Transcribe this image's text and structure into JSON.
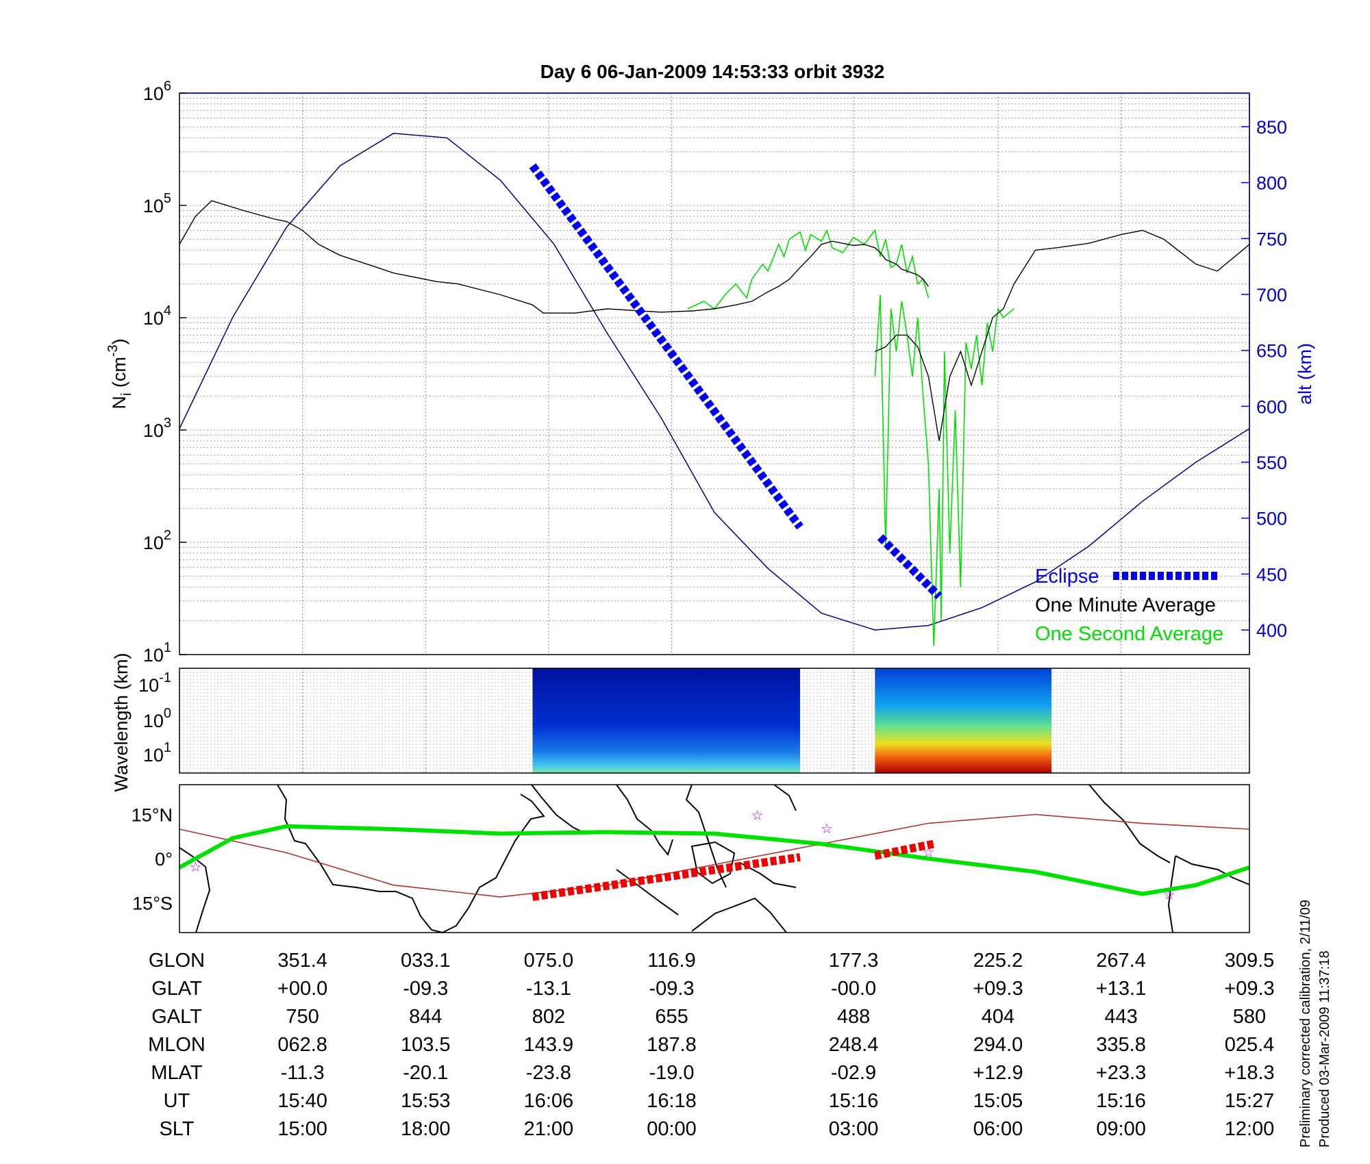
{
  "chart_data": {
    "type": "line",
    "title": "Day 6  06-Jan-2009 14:53:33   orbit 3932",
    "panels": [
      {
        "name": "density",
        "y_left": {
          "label": "Ni (cm-3)",
          "scale": "log",
          "ylim": [
            10,
            1000000
          ],
          "ticks": [
            {
              "base": "10",
              "exp": "1"
            },
            {
              "base": "10",
              "exp": "2"
            },
            {
              "base": "10",
              "exp": "3"
            },
            {
              "base": "10",
              "exp": "4"
            },
            {
              "base": "10",
              "exp": "5"
            },
            {
              "base": "10",
              "exp": "6"
            }
          ]
        },
        "y_right": {
          "label": "alt (km)",
          "ylim": [
            378,
            880
          ],
          "ticks": [
            "400",
            "450",
            "500",
            "550",
            "600",
            "650",
            "700",
            "750",
            "800",
            "850"
          ]
        },
        "legend": {
          "position": "bottom-right",
          "entries": [
            "Eclipse",
            "One Minute Average",
            "One Second Average"
          ]
        },
        "series": [
          {
            "name": "One Minute Average",
            "color": "#000000",
            "segments": [
              {
                "x": [
                  0.0,
                  0.015,
                  0.03,
                  0.06,
                  0.09,
                  0.1,
                  0.115,
                  0.13,
                  0.15,
                  0.18,
                  0.2,
                  0.24,
                  0.26,
                  0.3,
                  0.33,
                  0.34,
                  0.37,
                  0.4,
                  0.43,
                  0.45,
                  0.48,
                  0.5,
                  0.52,
                  0.535,
                  0.55,
                  0.56,
                  0.57,
                  0.58,
                  0.59,
                  0.6,
                  0.61,
                  0.62,
                  0.63,
                  0.64,
                  0.65,
                  0.655,
                  0.66,
                  0.67,
                  0.675,
                  0.68,
                  0.685,
                  0.69,
                  0.695,
                  0.7
                ],
                "y": [
                  45000,
                  80000,
                  110000,
                  90000,
                  75000,
                  72000,
                  60000,
                  45000,
                  36000,
                  29000,
                  25000,
                  21000,
                  20000,
                  16000,
                  13000,
                  11000,
                  11000,
                  12000,
                  11500,
                  11200,
                  11500,
                  12000,
                  13000,
                  14000,
                  17000,
                  19000,
                  22000,
                  28000,
                  35000,
                  45000,
                  48000,
                  46000,
                  44000,
                  45000,
                  42000,
                  38000,
                  33000,
                  30000,
                  27000,
                  26000,
                  25000,
                  24000,
                  22000,
                  19000
                ]
              },
              {
                "x": [
                  0.65,
                  0.66,
                  0.67,
                  0.68,
                  0.69,
                  0.7,
                  0.71,
                  0.72,
                  0.73,
                  0.74,
                  0.75,
                  0.76,
                  0.77,
                  0.78,
                  0.8,
                  0.82,
                  0.85,
                  0.88,
                  0.9,
                  0.92,
                  0.95,
                  0.97,
                  1.0
                ],
                "y": [
                  5000,
                  5500,
                  7000,
                  7000,
                  5500,
                  3000,
                  800,
                  3000,
                  5000,
                  2500,
                  5000,
                  10000,
                  12000,
                  20000,
                  40000,
                  42000,
                  46000,
                  55000,
                  60000,
                  50000,
                  30000,
                  26000,
                  45000
                ]
              }
            ]
          },
          {
            "name": "One Second Average",
            "color": "#00e000",
            "segments": [
              {
                "x": [
                  0.475,
                  0.49,
                  0.5,
                  0.51,
                  0.52,
                  0.53,
                  0.535,
                  0.545,
                  0.55,
                  0.56,
                  0.565,
                  0.57,
                  0.58,
                  0.585,
                  0.59,
                  0.6,
                  0.605,
                  0.61,
                  0.62,
                  0.63,
                  0.64,
                  0.65,
                  0.655,
                  0.66,
                  0.665,
                  0.67,
                  0.675,
                  0.68,
                  0.685,
                  0.69,
                  0.695,
                  0.7
                ],
                "y": [
                  12000,
                  14000,
                  12000,
                  16000,
                  20000,
                  15000,
                  22000,
                  30000,
                  26000,
                  45000,
                  35000,
                  50000,
                  58000,
                  40000,
                  55000,
                  48000,
                  60000,
                  42000,
                  38000,
                  52000,
                  45000,
                  60000,
                  35000,
                  50000,
                  28000,
                  30000,
                  45000,
                  25000,
                  35000,
                  20000,
                  22000,
                  15000
                ]
              },
              {
                "x": [
                  0.65,
                  0.655,
                  0.66,
                  0.665,
                  0.67,
                  0.675,
                  0.68,
                  0.685,
                  0.69,
                  0.695,
                  0.7,
                  0.705,
                  0.71,
                  0.712,
                  0.715,
                  0.72,
                  0.725,
                  0.73,
                  0.735,
                  0.74,
                  0.745,
                  0.75,
                  0.755,
                  0.76,
                  0.765,
                  0.77,
                  0.775,
                  0.78
                ],
                "y": [
                  3000,
                  16000,
                  90,
                  12000,
                  5000,
                  14000,
                  7000,
                  3000,
                  10000,
                  2000,
                  500,
                  12,
                  300,
                  20,
                  5000,
                  80,
                  1500,
                  40,
                  6000,
                  3500,
                  7000,
                  2500,
                  9000,
                  5000,
                  12000,
                  10000,
                  11000,
                  12000
                ]
              }
            ]
          },
          {
            "name": "Altitude",
            "color": "#000080",
            "x": [
              0.0,
              0.05,
              0.1,
              0.15,
              0.2,
              0.25,
              0.3,
              0.35,
              0.4,
              0.45,
              0.5,
              0.55,
              0.6,
              0.65,
              0.7,
              0.75,
              0.8,
              0.85,
              0.9,
              0.95,
              1.0
            ],
            "y": [
              580,
              680,
              760,
              815,
              844,
              840,
              802,
              745,
              665,
              590,
              505,
              455,
              415,
              400,
              404,
              420,
              443,
              475,
              515,
              550,
              580
            ]
          },
          {
            "name": "Eclipse",
            "color": "#0000ee",
            "segments": [
              {
                "x": [
                  0.33,
                  0.58
                ],
                "y": [
                  815,
                  492
                ]
              },
              {
                "x": [
                  0.655,
                  0.71
                ],
                "y": [
                  483,
                  430
                ]
              }
            ]
          }
        ]
      },
      {
        "name": "spectrogram",
        "y_left": {
          "label": "Wavelength (km)",
          "ticks": [
            {
              "base": "10",
              "exp": "-1"
            },
            {
              "base": "10",
              "exp": "0"
            },
            {
              "base": "10",
              "exp": "1"
            }
          ]
        },
        "blocks": [
          {
            "x": [
              0.33,
              0.58
            ],
            "intensity": "low"
          },
          {
            "x": [
              0.65,
              0.815
            ],
            "intensity": "high"
          }
        ]
      },
      {
        "name": "map",
        "y_left": {
          "ticks": [
            "15°N",
            "0°",
            "15°S"
          ]
        },
        "series": [
          {
            "name": "magnetic equator",
            "color": "#aa3333",
            "x": [
              0.0,
              0.1,
              0.2,
              0.3,
              0.4,
              0.5,
              0.6,
              0.7,
              0.8,
              0.9,
              1.0
            ],
            "lat": [
              10,
              2,
              -9,
              -13,
              -9,
              -2,
              5,
              12,
              15,
              12,
              10
            ]
          },
          {
            "name": "satellite track",
            "color": "#00e000",
            "x": [
              0.0,
              0.05,
              0.1,
              0.2,
              0.3,
              0.4,
              0.5,
              0.6,
              0.7,
              0.8,
              0.9,
              0.95,
              1.0
            ],
            "lat": [
              -3,
              7,
              11,
              10,
              8.5,
              9,
              8.5,
              5,
              0,
              -4.5,
              -12,
              -9,
              -3
            ]
          },
          {
            "name": "eclipse track",
            "color": "#ee0000",
            "segments": [
              {
                "x": [
                  0.33,
                  0.58
                ],
                "lat": [
                  -13,
                  0.5
                ]
              },
              {
                "x": [
                  0.65,
                  0.705
                ],
                "lat": [
                  1,
                  5
                ]
              }
            ]
          }
        ],
        "stars": [
          {
            "x": 0.015,
            "lat": -2.5
          },
          {
            "x": 0.54,
            "lat": 15
          },
          {
            "x": 0.605,
            "lat": 10.5
          },
          {
            "x": 0.7,
            "lat": 2.5
          },
          {
            "x": 0.925,
            "lat": -12
          }
        ]
      }
    ],
    "xticks": [
      0.115,
      0.23,
      0.345,
      0.46,
      0.63,
      0.765,
      0.88,
      1.0
    ]
  },
  "table": {
    "rows": [
      {
        "label": "GLON",
        "values": [
          "351.4",
          "033.1",
          "075.0",
          "116.9",
          "177.3",
          "225.2",
          "267.4",
          "309.5"
        ]
      },
      {
        "label": "GLAT",
        "values": [
          "+00.0",
          "-09.3",
          "-13.1",
          "-09.3",
          "-00.0",
          "+09.3",
          "+13.1",
          "+09.3"
        ]
      },
      {
        "label": "GALT",
        "values": [
          "750",
          "844",
          "802",
          "655",
          "488",
          "404",
          "443",
          "580"
        ]
      },
      {
        "label": "MLON",
        "values": [
          "062.8",
          "103.5",
          "143.9",
          "187.8",
          "248.4",
          "294.0",
          "335.8",
          "025.4"
        ]
      },
      {
        "label": "MLAT",
        "values": [
          "-11.3",
          "-20.1",
          "-23.8",
          "-19.0",
          "-02.9",
          "+12.9",
          "+23.3",
          "+18.3"
        ]
      },
      {
        "label": "UT",
        "values": [
          "15:40",
          "15:53",
          "16:06",
          "16:18",
          "15:16",
          "15:05",
          "15:16",
          "15:27"
        ]
      },
      {
        "label": "SLT",
        "values": [
          "15:00",
          "18:00",
          "21:00",
          "00:00",
          "03:00",
          "06:00",
          "09:00",
          "12:00"
        ]
      }
    ]
  },
  "footer": {
    "line1": "Preliminary corrected calibration, 2/11/09",
    "line2": "Produced 03-Mar-2009 11:37:18"
  }
}
